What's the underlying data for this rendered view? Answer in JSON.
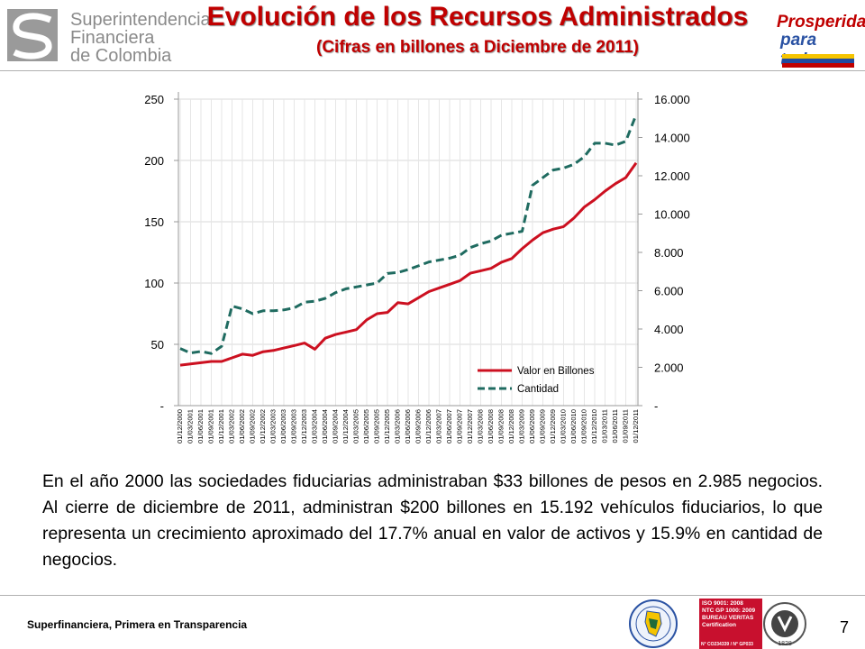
{
  "header": {
    "logo_line1": "Superintendencia",
    "logo_line2": "Financiera",
    "logo_line3": "de Colombia",
    "title": "Evolución de los Recursos Administrados",
    "subtitle": "(Cifras en billones a Diciembre de 2011)",
    "brand_line1": "Prosperidad",
    "brand_line2": "para todos"
  },
  "colors": {
    "title": "#c00000",
    "valor_series": "#cc1020",
    "cantidad_series": "#1f6b60",
    "grid": "#d9d9d9"
  },
  "chart_data": {
    "type": "line",
    "x": [
      "01/12/2000",
      "01/03/2001",
      "01/06/2001",
      "01/09/2001",
      "01/12/2001",
      "01/03/2002",
      "01/06/2002",
      "01/09/2002",
      "01/12/2002",
      "01/03/2003",
      "01/06/2003",
      "01/09/2003",
      "01/12/2003",
      "01/03/2004",
      "01/06/2004",
      "01/09/2004",
      "01/12/2004",
      "01/03/2005",
      "01/06/2005",
      "01/09/2005",
      "01/12/2005",
      "01/03/2006",
      "01/06/2006",
      "01/09/2006",
      "01/12/2006",
      "01/03/2007",
      "01/06/2007",
      "01/09/2007",
      "01/12/2007",
      "01/03/2008",
      "01/06/2008",
      "01/09/2008",
      "01/12/2008",
      "01/03/2009",
      "01/06/2009",
      "01/09/2009",
      "01/12/2009",
      "01/03/2010",
      "01/06/2010",
      "01/09/2010",
      "01/12/2010",
      "01/03/2011",
      "01/06/2011",
      "01/09/2011",
      "01/12/2011"
    ],
    "series": [
      {
        "name": "Valor en Billones",
        "axis": "left",
        "style": "solid",
        "values": [
          33,
          34,
          35,
          36,
          36,
          39,
          42,
          41,
          44,
          45,
          47,
          49,
          51,
          46,
          55,
          58,
          60,
          62,
          70,
          75,
          76,
          84,
          83,
          88,
          93,
          96,
          99,
          102,
          108,
          110,
          112,
          117,
          120,
          128,
          135,
          141,
          144,
          146,
          153,
          162,
          168,
          175,
          181,
          186,
          198
        ]
      },
      {
        "name": "Cantidad",
        "axis": "right",
        "style": "dashed",
        "values": [
          2985,
          2750,
          2830,
          2720,
          3100,
          5200,
          5050,
          4800,
          4950,
          4950,
          5000,
          5100,
          5400,
          5450,
          5600,
          5900,
          6100,
          6200,
          6300,
          6400,
          6900,
          6950,
          7100,
          7300,
          7500,
          7600,
          7700,
          7850,
          8250,
          8450,
          8600,
          8900,
          9000,
          9100,
          11500,
          11900,
          12300,
          12400,
          12600,
          13000,
          13700,
          13700,
          13600,
          13800,
          15192
        ]
      }
    ],
    "y_left": {
      "ylim": [
        0,
        250
      ],
      "ticks": [
        0,
        50,
        100,
        150,
        200,
        250
      ],
      "tick_labels": [
        "-",
        "50",
        "100",
        "150",
        "200",
        "250"
      ]
    },
    "y_right": {
      "ylim": [
        0,
        16000
      ],
      "ticks": [
        0,
        2000,
        4000,
        6000,
        8000,
        10000,
        12000,
        14000,
        16000
      ],
      "tick_labels": [
        "-",
        "2.000",
        "4.000",
        "6.000",
        "8.000",
        "10.000",
        "12.000",
        "14.000",
        "16.000"
      ]
    },
    "grid": true,
    "legend_position": "bottom-right"
  },
  "body_text": "En el año 2000 las sociedades fiduciarias administraban $33 billones de pesos en 2.985 negocios. Al cierre de diciembre de 2011, administran $200 billones en 15.192 vehículos fiduciarios, lo que representa un crecimiento aproximado del 17.7% anual en valor de activos y 15.9%  en cantidad de negocios.",
  "footer": {
    "slogan": "Superfinanciera, Primera en Transparencia",
    "page_number": "7",
    "cert_line1": "ISO 9001: 2008",
    "cert_line2": "NTC GP 1000: 2009",
    "cert_line3": "BUREAU VERITAS",
    "cert_line4": "Certification",
    "cert_numbers": "N° CO234339 / N° GP033",
    "bv_year": "1828"
  }
}
